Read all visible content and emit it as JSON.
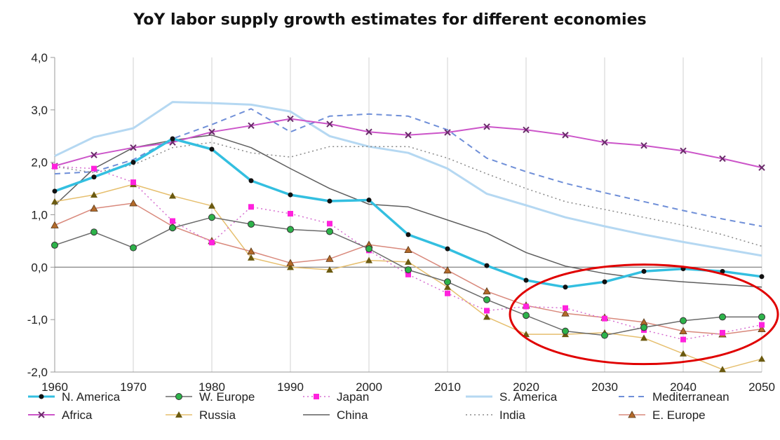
{
  "chart_data": {
    "type": "line",
    "title": "YoY labor supply growth estimates for different economies",
    "xlabel": "",
    "ylabel": "",
    "xlim": [
      1960,
      2050
    ],
    "ylim": [
      -2.0,
      4.0
    ],
    "x_ticks": [
      "1960",
      "1970",
      "1980",
      "1990",
      "2000",
      "2010",
      "2020",
      "2030",
      "2040",
      "2050"
    ],
    "x_tick_values": [
      1960,
      1970,
      1980,
      1990,
      2000,
      2010,
      2020,
      2030,
      2040,
      2050
    ],
    "y_ticks": [
      "4,0",
      "3,0",
      "2,0",
      "1,0",
      "0,0",
      "-1,0",
      "-2,0"
    ],
    "y_tick_values": [
      4,
      3,
      2,
      1,
      0,
      -1,
      -2
    ],
    "grid": "vertical",
    "legend_position": "bottom",
    "series": [
      {
        "name": "N. America",
        "color": "#33bfe0",
        "style": "solid",
        "marker": "dot",
        "width": 3.5,
        "x": [
          1960,
          1965,
          1970,
          1975,
          1980,
          1985,
          1990,
          1995,
          2000,
          2005,
          2010,
          2015,
          2020,
          2025,
          2030,
          2035,
          2040,
          2045,
          2050
        ],
        "y": [
          1.45,
          1.72,
          2.0,
          2.45,
          2.25,
          1.65,
          1.38,
          1.26,
          1.28,
          0.62,
          0.35,
          0.03,
          -0.25,
          -0.38,
          -0.28,
          -0.08,
          -0.03,
          -0.08,
          -0.18
        ]
      },
      {
        "name": "W. Europe",
        "color": "#6b6b6b",
        "style": "solid",
        "marker": "green-circle",
        "width": 1.5,
        "x": [
          1960,
          1965,
          1970,
          1975,
          1980,
          1985,
          1990,
          1995,
          2000,
          2005,
          2010,
          2015,
          2020,
          2025,
          2030,
          2035,
          2040,
          2045,
          2050
        ],
        "y": [
          0.42,
          0.67,
          0.37,
          0.75,
          0.95,
          0.82,
          0.72,
          0.68,
          0.35,
          -0.05,
          -0.28,
          -0.62,
          -0.92,
          -1.22,
          -1.3,
          -1.15,
          -1.02,
          -0.95,
          -0.95
        ]
      },
      {
        "name": "Japan",
        "color": "#d66ed0",
        "style": "dotted",
        "marker": "magenta-square",
        "width": 1.5,
        "x": [
          1960,
          1965,
          1970,
          1975,
          1980,
          1985,
          1990,
          1995,
          2000,
          2005,
          2010,
          2015,
          2020,
          2025,
          2030,
          2035,
          2040,
          2045,
          2050
        ],
        "y": [
          1.92,
          1.88,
          1.62,
          0.88,
          0.47,
          1.15,
          1.02,
          0.83,
          0.32,
          -0.14,
          -0.5,
          -0.83,
          -0.75,
          -0.78,
          -0.98,
          -1.2,
          -1.38,
          -1.25,
          -1.1
        ]
      },
      {
        "name": "S. America",
        "color": "#b5d8f2",
        "style": "solid",
        "marker": "none",
        "width": 3,
        "x": [
          1960,
          1965,
          1970,
          1975,
          1980,
          1985,
          1990,
          1995,
          2000,
          2005,
          2010,
          2015,
          2020,
          2025,
          2030,
          2035,
          2040,
          2045,
          2050
        ],
        "y": [
          2.12,
          2.48,
          2.65,
          3.15,
          3.13,
          3.1,
          2.97,
          2.5,
          2.3,
          2.18,
          1.88,
          1.4,
          1.18,
          0.95,
          0.78,
          0.62,
          0.48,
          0.35,
          0.22
        ]
      },
      {
        "name": "Mediterranean",
        "color": "#6f8fd8",
        "style": "dashed",
        "marker": "none",
        "width": 2,
        "x": [
          1960,
          1965,
          1970,
          1975,
          1980,
          1985,
          1990,
          1995,
          2000,
          2005,
          2010,
          2015,
          2020,
          2025,
          2030,
          2035,
          2040,
          2045,
          2050
        ],
        "y": [
          1.78,
          1.82,
          2.05,
          2.45,
          2.72,
          3.02,
          2.58,
          2.88,
          2.92,
          2.88,
          2.62,
          2.08,
          1.82,
          1.6,
          1.42,
          1.25,
          1.08,
          0.92,
          0.78
        ]
      },
      {
        "name": "Africa",
        "color": "#cc55c9",
        "style": "solid",
        "marker": "x",
        "width": 2,
        "x": [
          1960,
          1965,
          1970,
          1975,
          1980,
          1985,
          1990,
          1995,
          2000,
          2005,
          2010,
          2015,
          2020,
          2025,
          2030,
          2035,
          2040,
          2045,
          2050
        ],
        "y": [
          1.93,
          2.14,
          2.28,
          2.38,
          2.58,
          2.7,
          2.83,
          2.73,
          2.58,
          2.52,
          2.57,
          2.68,
          2.62,
          2.52,
          2.38,
          2.32,
          2.22,
          2.07,
          1.9
        ]
      },
      {
        "name": "Russia",
        "color": "#e6bf6e",
        "style": "solid",
        "marker": "triangle",
        "width": 1.5,
        "x": [
          1960,
          1965,
          1970,
          1975,
          1980,
          1985,
          1990,
          1995,
          2000,
          2005,
          2010,
          2015,
          2020,
          2025,
          2030,
          2035,
          2040,
          2045,
          2050
        ],
        "y": [
          1.25,
          1.38,
          1.58,
          1.36,
          1.17,
          0.18,
          0.0,
          -0.05,
          0.13,
          0.1,
          -0.38,
          -0.95,
          -1.28,
          -1.28,
          -1.25,
          -1.35,
          -1.65,
          -1.95,
          -1.75
        ]
      },
      {
        "name": "China",
        "color": "#5e5e5e",
        "style": "solid",
        "marker": "none",
        "width": 1.5,
        "x": [
          1960,
          1965,
          1970,
          1975,
          1980,
          1985,
          1990,
          1995,
          2000,
          2005,
          2010,
          2015,
          2020,
          2025,
          2030,
          2035,
          2040,
          2045,
          2050
        ],
        "y": [
          1.18,
          1.88,
          2.28,
          2.42,
          2.52,
          2.28,
          1.88,
          1.5,
          1.2,
          1.15,
          0.9,
          0.65,
          0.28,
          0.02,
          -0.12,
          -0.22,
          -0.28,
          -0.33,
          -0.38
        ]
      },
      {
        "name": "India",
        "color": "#8a8a8a",
        "style": "dotted",
        "marker": "none",
        "width": 1.5,
        "x": [
          1960,
          1965,
          1970,
          1975,
          1980,
          1985,
          1990,
          1995,
          2000,
          2005,
          2010,
          2015,
          2020,
          2025,
          2030,
          2035,
          2040,
          2045,
          2050
        ],
        "y": [
          1.92,
          1.8,
          1.95,
          2.28,
          2.38,
          2.18,
          2.1,
          2.3,
          2.3,
          2.3,
          2.08,
          1.78,
          1.5,
          1.25,
          1.1,
          0.95,
          0.8,
          0.62,
          0.4
        ]
      },
      {
        "name": "E. Europe",
        "color": "#d9897c",
        "style": "solid",
        "marker": "brown-triangle",
        "width": 1.5,
        "x": [
          1960,
          1965,
          1970,
          1975,
          1980,
          1985,
          1990,
          1995,
          2000,
          2005,
          2010,
          2015,
          2020,
          2025,
          2030,
          2035,
          2040,
          2045,
          2050
        ],
        "y": [
          0.8,
          1.12,
          1.22,
          0.78,
          0.5,
          0.3,
          0.08,
          0.16,
          0.43,
          0.33,
          -0.06,
          -0.46,
          -0.73,
          -0.88,
          -0.96,
          -1.05,
          -1.22,
          -1.28,
          -1.18
        ]
      }
    ],
    "annotations": [
      {
        "type": "ellipse",
        "color": "#e00000",
        "description": "highlight",
        "cx": 2035,
        "cy": -0.9
      }
    ]
  }
}
